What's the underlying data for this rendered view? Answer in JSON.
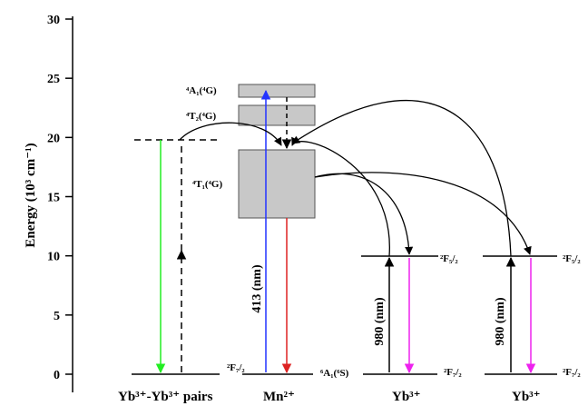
{
  "axis": {
    "label": "Energy (10³ cm⁻¹)",
    "ticks": [
      "0",
      "5",
      "10",
      "15",
      "20",
      "25",
      "30"
    ],
    "range": [
      0,
      30
    ]
  },
  "columns": {
    "pairs": "Yb³⁺-Yb³⁺ pairs",
    "mn": "Mn²⁺",
    "yb1": "Yb³⁺",
    "yb2": "Yb³⁺"
  },
  "levels": {
    "a1_4g": "⁴A₁(⁴G)",
    "t2_4g": "⁴T₂(⁴G)",
    "t1_4g": "⁴T₁(⁴G)",
    "a1_6s": "⁶A₁(⁶S)",
    "f72": "²F₇/₂",
    "f52": "²F₅/₂"
  },
  "arrows": {
    "mn_excitation": "413 (nm)",
    "yb_excitation": "980 (nm)"
  },
  "colors": {
    "green": "#22ee22",
    "blue": "#2233ff",
    "red": "#dd2222",
    "magenta": "#ee22ee",
    "box_fill": "#c8c8c8",
    "black": "#000000"
  },
  "energies": {
    "ground": 0,
    "pair_level": 19.8,
    "yb_f52": 10.0,
    "t1_band": [
      13.2,
      18.8
    ],
    "t2_band": [
      20.8,
      22.6
    ],
    "a1_band": [
      23.8,
      24.8
    ]
  }
}
